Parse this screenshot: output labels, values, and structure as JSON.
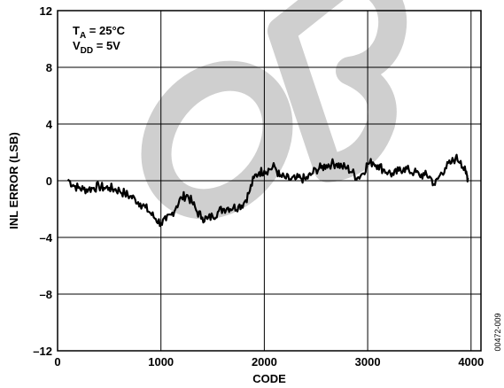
{
  "chart_data": {
    "type": "line",
    "xlabel": "CODE",
    "ylabel": "INL ERROR (LSB)",
    "xlim": [
      0,
      4096
    ],
    "ylim": [
      -12,
      12
    ],
    "x_ticks": [
      0,
      1000,
      2000,
      3000,
      4000
    ],
    "y_ticks": [
      -12,
      -8,
      -4,
      0,
      4,
      8,
      12
    ],
    "y_tick_labels": [
      "–12",
      "–8",
      "–4",
      "0",
      "4",
      "8",
      "12"
    ],
    "grid": true,
    "annotation": {
      "line1_main": "T",
      "line1_sub": "A",
      "line1_rest": " = 25°C",
      "line2_main": "V",
      "line2_sub": "DD",
      "line2_rest": " = 5V"
    },
    "figure_id": "00472-009",
    "watermark_text": "OB",
    "series": [
      {
        "values": [
          [
            100,
            0.1
          ],
          [
            150,
            -0.3
          ],
          [
            200,
            -0.5
          ],
          [
            250,
            -0.6
          ],
          [
            300,
            -0.6
          ],
          [
            350,
            -0.5
          ],
          [
            400,
            -0.4
          ],
          [
            450,
            -0.5
          ],
          [
            500,
            -0.5
          ],
          [
            550,
            -0.6
          ],
          [
            600,
            -0.7
          ],
          [
            650,
            -0.9
          ],
          [
            700,
            -1.1
          ],
          [
            750,
            -1.3
          ],
          [
            800,
            -1.6
          ],
          [
            850,
            -1.9
          ],
          [
            900,
            -2.3
          ],
          [
            950,
            -2.7
          ],
          [
            1000,
            -3.0
          ],
          [
            1050,
            -2.8
          ],
          [
            1100,
            -2.4
          ],
          [
            1150,
            -1.8
          ],
          [
            1200,
            -1.2
          ],
          [
            1250,
            -1.0
          ],
          [
            1300,
            -1.5
          ],
          [
            1350,
            -2.2
          ],
          [
            1400,
            -2.6
          ],
          [
            1450,
            -2.7
          ],
          [
            1500,
            -2.5
          ],
          [
            1550,
            -2.2
          ],
          [
            1600,
            -2.0
          ],
          [
            1650,
            -1.9
          ],
          [
            1700,
            -1.9
          ],
          [
            1750,
            -1.8
          ],
          [
            1800,
            -1.6
          ],
          [
            1850,
            -0.9
          ],
          [
            1900,
            0.2
          ],
          [
            1950,
            0.6
          ],
          [
            2000,
            0.7
          ],
          [
            2050,
            0.8
          ],
          [
            2100,
            1.0
          ],
          [
            2150,
            0.3
          ],
          [
            2200,
            0.2
          ],
          [
            2250,
            0.1
          ],
          [
            2300,
            0.1
          ],
          [
            2350,
            0.2
          ],
          [
            2400,
            0.1
          ],
          [
            2450,
            0.4
          ],
          [
            2500,
            0.8
          ],
          [
            2550,
            0.9
          ],
          [
            2600,
            1.1
          ],
          [
            2650,
            1.2
          ],
          [
            2700,
            1.2
          ],
          [
            2750,
            1.0
          ],
          [
            2800,
            0.9
          ],
          [
            2850,
            0.6
          ],
          [
            2900,
            0.2
          ],
          [
            2950,
            0.5
          ],
          [
            3000,
            1.2
          ],
          [
            3050,
            1.3
          ],
          [
            3100,
            1.1
          ],
          [
            3150,
            0.8
          ],
          [
            3200,
            0.6
          ],
          [
            3250,
            0.4
          ],
          [
            3300,
            0.7
          ],
          [
            3350,
            0.9
          ],
          [
            3400,
            0.7
          ],
          [
            3450,
            0.6
          ],
          [
            3500,
            0.4
          ],
          [
            3550,
            0.4
          ],
          [
            3600,
            0.3
          ],
          [
            3650,
            -0.3
          ],
          [
            3700,
            0.4
          ],
          [
            3750,
            0.9
          ],
          [
            3800,
            1.2
          ],
          [
            3850,
            1.6
          ],
          [
            3900,
            1.4
          ],
          [
            3950,
            0.5
          ],
          [
            3970,
            0.2
          ]
        ]
      }
    ]
  }
}
